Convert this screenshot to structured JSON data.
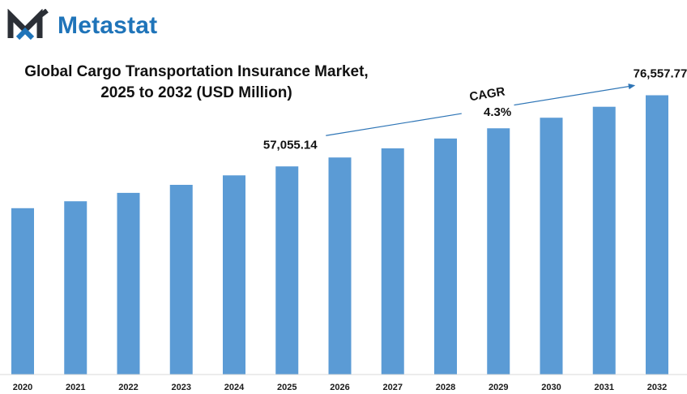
{
  "brand": {
    "name": "Metastat",
    "color": "#1f74b9",
    "mark_dark": "#2b2f36"
  },
  "chart_data": {
    "type": "bar",
    "title_line1": "Global Cargo Transportation Insurance Market,",
    "title_line2": "2025 to 2032 (USD Million)",
    "xlabel": "",
    "ylabel": "",
    "categories": [
      "2020",
      "2021",
      "2022",
      "2023",
      "2024",
      "2025",
      "2026",
      "2027",
      "2028",
      "2029",
      "2030",
      "2031",
      "2032"
    ],
    "values": [
      45600,
      47500,
      49800,
      52000,
      54600,
      57055.14,
      59500,
      62000,
      64700,
      67500,
      70400,
      73400,
      76557.77
    ],
    "ylim": [
      0,
      80000
    ],
    "bar_color": "#5b9bd5",
    "grid": false,
    "legend": "none",
    "data_labels": [
      {
        "category": "2025",
        "text": "57,055.14"
      },
      {
        "category": "2032",
        "text": "76,557.77"
      }
    ],
    "annotation": {
      "label": "CAGR",
      "value": "4.3%",
      "arrow_color": "#2e75b6"
    }
  }
}
